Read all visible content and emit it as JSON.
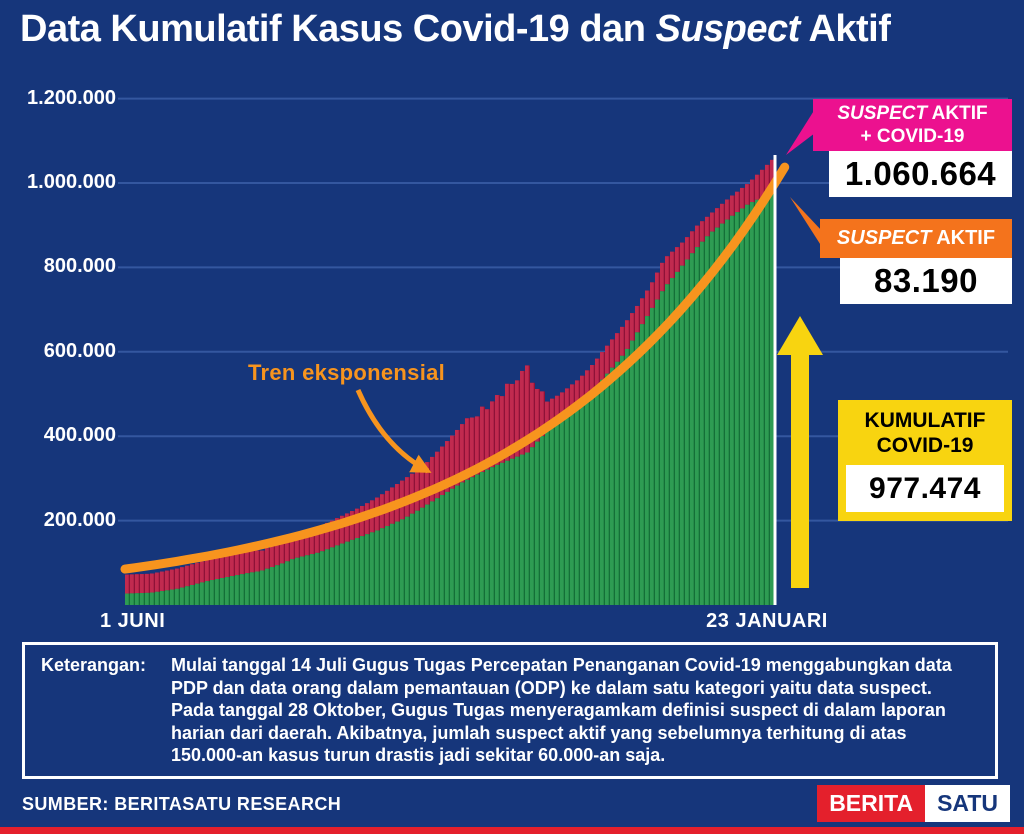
{
  "title": {
    "part1": "Data Kumulatif Kasus Covid-19 dan ",
    "part2_italic": "Suspect",
    "part3": " Aktif"
  },
  "y_axis": {
    "labels": [
      "1.200.000",
      "1.000.000",
      "800.000",
      "600.000",
      "400.000",
      "200.000"
    ]
  },
  "x_axis": {
    "start_label": "1 JUNI",
    "end_label": "23 JANUARI"
  },
  "trend_label": "Tren eksponensial",
  "callouts": {
    "total": {
      "title_italic": "SUSPECT",
      "title_rest": " AKTIF",
      "line2": "+ COVID-19",
      "value": "1.060.664"
    },
    "suspect": {
      "title_italic": "SUSPECT",
      "title_rest": " AKTIF",
      "value": "83.190"
    },
    "covid": {
      "line1": "KUMULATIF",
      "line2": "COVID-19",
      "value": "977.474"
    }
  },
  "note": {
    "label": "Keterangan:",
    "text": "Mulai tanggal 14 Juli Gugus Tugas Percepatan Penanganan Covid-19 menggabungkan data PDP dan data orang dalam pemantauan (ODP) ke dalam satu kategori yaitu data suspect. Pada tanggal 28 Oktober, Gugus Tugas menyeragamkam definisi suspect di dalam laporan harian dari daerah. Akibatnya, jumlah suspect aktif yang sebelumnya terhitung di atas 150.000-an kasus turun drastis jadi sekitar 60.000-an saja."
  },
  "source": "SUMBER: BERITASATU RESEARCH",
  "logo": {
    "part1": "BERITA",
    "part2": "SATU"
  },
  "colors": {
    "background": "#16367B",
    "gridline": "#34579F",
    "green": "#2E9C53",
    "green_dark": "#147038",
    "red": "#C12A4F",
    "red_dark": "#8E1238",
    "orange": "#F7941E",
    "pink": "#EC118F",
    "orange_box": "#F4731C",
    "yellow": "#F8D410",
    "white": "#FFFFFF"
  },
  "chart_data": {
    "type": "area",
    "title": "Data Kumulatif Kasus Covid-19 dan Suspect Aktif",
    "xlabel": "",
    "ylabel": "",
    "x_labels": [
      "1 JUNI",
      "23 JANUARI"
    ],
    "ylim": [
      0,
      1200000
    ],
    "y_ticks": [
      200000,
      400000,
      600000,
      800000,
      1000000,
      1200000
    ],
    "grid": true,
    "legend_position": "none",
    "series": [
      {
        "name": "Kumulatif Covid-19",
        "style": "area-green-bars",
        "x": [
          0,
          0.04,
          0.08,
          0.13,
          0.17,
          0.19,
          0.21,
          0.24,
          0.26,
          0.3,
          0.33,
          0.36,
          0.39,
          0.43,
          0.46,
          0.49,
          0.52,
          0.55,
          0.57,
          0.6,
          0.62,
          0.64,
          0.65,
          0.67,
          0.7,
          0.72,
          0.74,
          0.77,
          0.79,
          0.81,
          0.83,
          0.86,
          0.88,
          0.9,
          0.93,
          0.96,
          0.98,
          1.0
        ],
        "values": [
          26940,
          29000,
          38000,
          57770,
          70000,
          75699,
          81000,
          97000,
          109936,
          125000,
          143000,
          160000,
          177571,
          205000,
          232628,
          262000,
          291182,
          315000,
          330000,
          349000,
          361867,
          396454,
          412784,
          435000,
          470000,
          506302,
          543975,
          598933,
          650000,
          700000,
          751270,
          808340,
          846765,
          880000,
          917015,
          951000,
          965000,
          977474
        ]
      },
      {
        "name": "Suspect Aktif + Covid-19",
        "style": "area-red-bars",
        "x": [
          0,
          0.04,
          0.08,
          0.13,
          0.17,
          0.19,
          0.21,
          0.24,
          0.26,
          0.3,
          0.33,
          0.36,
          0.39,
          0.43,
          0.46,
          0.49,
          0.51,
          0.52,
          0.53,
          0.54,
          0.55,
          0.56,
          0.57,
          0.58,
          0.59,
          0.6,
          0.61,
          0.62,
          0.625,
          0.63,
          0.64,
          0.645,
          0.65,
          0.67,
          0.7,
          0.72,
          0.74,
          0.77,
          0.79,
          0.81,
          0.83,
          0.86,
          0.88,
          0.9,
          0.93,
          0.96,
          0.98,
          1.0
        ],
        "values": [
          72000,
          74000,
          86000,
          108000,
          126000,
          132000,
          128000,
          150000,
          163000,
          186000,
          208000,
          230000,
          256000,
          298000,
          330000,
          378000,
          412000,
          430000,
          448000,
          440000,
          470000,
          462000,
          500000,
          492000,
          530000,
          520000,
          552000,
          569000,
          540000,
          505000,
          520000,
          490000,
          482000,
          500000,
          537000,
          570000,
          610000,
          668000,
          712000,
          760000,
          820000,
          862000,
          898000,
          925000,
          965000,
          1000000,
          1030000,
          1060664
        ]
      },
      {
        "name": "Tren eksponensial",
        "style": "line-orange",
        "trend": "exponential",
        "start": 85000,
        "end": 1000000
      }
    ],
    "end_values": {
      "suspect_aktif_plus_covid19": 1060664,
      "suspect_aktif": 83190,
      "kumulatif_covid19": 977474
    }
  }
}
